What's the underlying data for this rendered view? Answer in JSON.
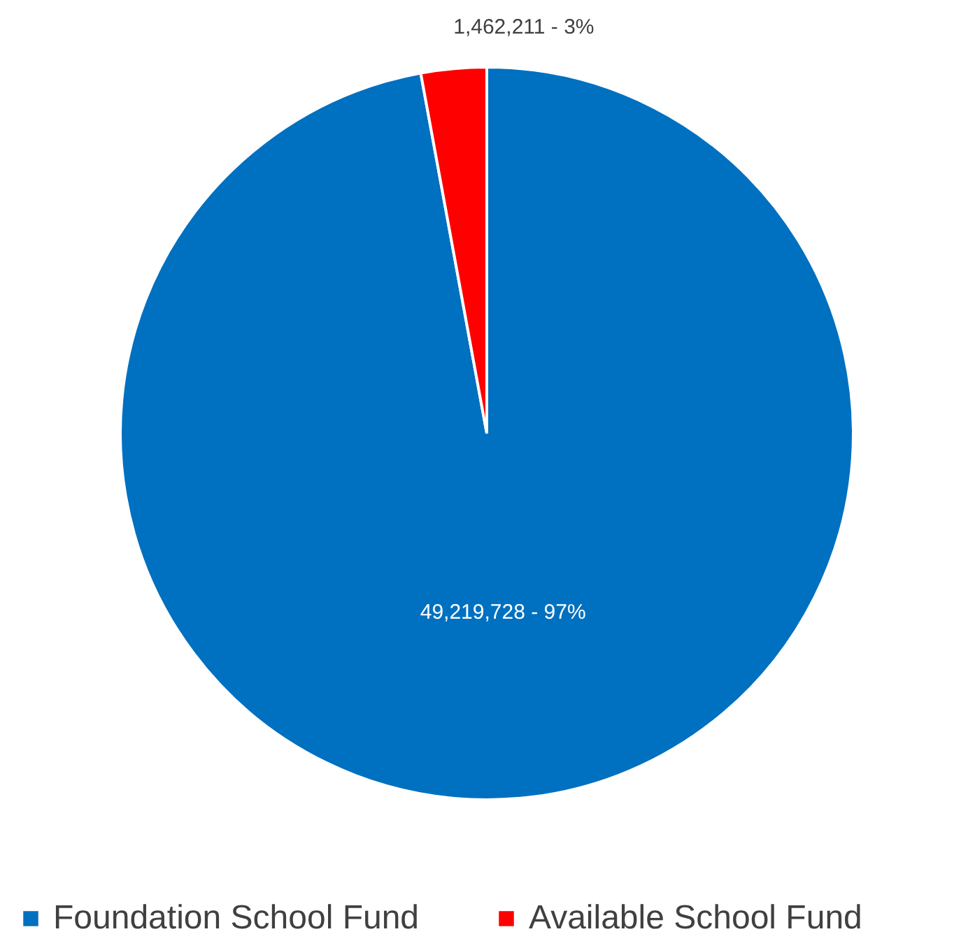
{
  "chart_data": {
    "type": "pie",
    "categories": [
      "Foundation School Fund",
      "Available School Fund"
    ],
    "values": [
      49219728,
      1462211
    ],
    "colors": [
      "#0070c0",
      "#ff0000"
    ],
    "value_labels": [
      "49,219,728  - 97%",
      "1,462,211 - 3%"
    ],
    "legend": "bottom"
  }
}
